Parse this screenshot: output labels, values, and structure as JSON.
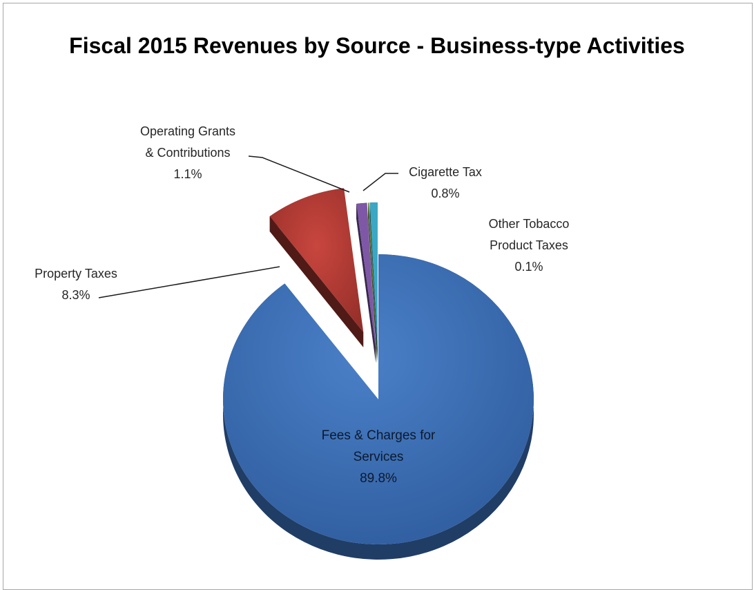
{
  "chart_data": {
    "type": "pie",
    "title": "Fiscal 2015 Revenues by Source - Business-type Activities",
    "is_3d": true,
    "exploded": true,
    "slices": [
      {
        "label": "Fees & Charges for Services",
        "value": 89.8,
        "value_label": "89.8%",
        "color": "#3b6fb9"
      },
      {
        "label": "Property Taxes",
        "value": 8.3,
        "value_label": "8.3%",
        "color": "#b23a33"
      },
      {
        "label": "Operating Grants & Contributions",
        "value": 1.1,
        "value_label": "1.1%",
        "color": "#7e58a6"
      },
      {
        "label": "Other Tobacco Product Taxes",
        "value": 0.1,
        "value_label": "0.1%",
        "color": "#76933c"
      },
      {
        "label": "Cigarette Tax",
        "value": 0.8,
        "value_label": "0.8%",
        "color": "#3aa7c4"
      }
    ],
    "labels": {
      "fees": {
        "lines": [
          "Fees & Charges for",
          "Services"
        ],
        "pct": "89.8%"
      },
      "property": {
        "lines": [
          "Property Taxes"
        ],
        "pct": "8.3%"
      },
      "grants": {
        "lines": [
          "Operating Grants",
          "& Contributions"
        ],
        "pct": "1.1%"
      },
      "cigarette": {
        "lines": [
          "Cigarette Tax"
        ],
        "pct": "0.8%"
      },
      "tobacco": {
        "lines": [
          "Other Tobacco",
          "Product Taxes"
        ],
        "pct": "0.1%"
      }
    }
  }
}
